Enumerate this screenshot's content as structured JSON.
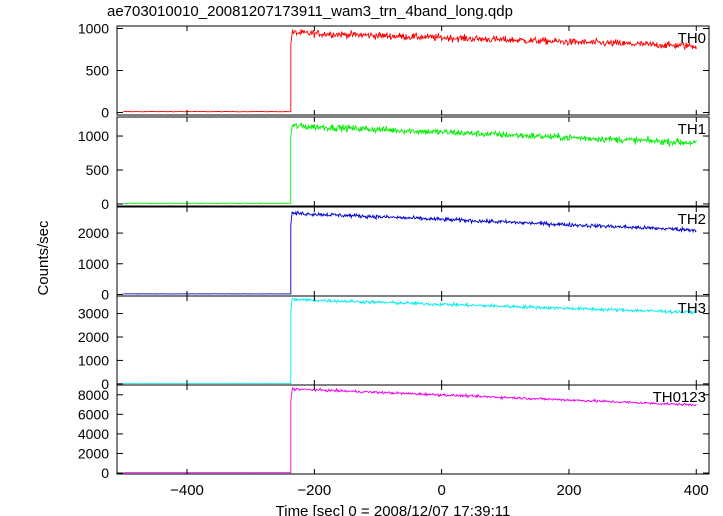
{
  "chart_data": {
    "type": "line",
    "title": "ae703010010_20081207173911_wam3_trn_4band_long.qdp",
    "xlabel": "Time [sec] 0 = 2008/12/07 17:39:11",
    "ylabel": "Counts/sec",
    "xlim": [
      -510,
      420
    ],
    "xticks": [
      -400,
      -200,
      0,
      200,
      400
    ],
    "onset_x": -237,
    "end_x": 400,
    "grid": false,
    "panels": [
      {
        "name": "TH0",
        "color": "#ff0000",
        "ylim": [
          -30,
          1030
        ],
        "yticks": [
          0,
          500,
          1000
        ],
        "pre": 10,
        "peak": 950,
        "end": 790,
        "noise": 30
      },
      {
        "name": "TH1",
        "color": "#00ee00",
        "ylim": [
          -30,
          1280
        ],
        "yticks": [
          0,
          500,
          1000
        ],
        "pre": 10,
        "peak": 1150,
        "end": 900,
        "noise": 35
      },
      {
        "name": "TH2",
        "color": "#0000cc",
        "ylim": [
          -50,
          2850
        ],
        "yticks": [
          0,
          1000,
          2000
        ],
        "pre": 20,
        "peak": 2650,
        "end": 2100,
        "noise": 45
      },
      {
        "name": "TH3",
        "color": "#00eeee",
        "ylim": [
          -50,
          3750
        ],
        "yticks": [
          0,
          1000,
          2000,
          3000
        ],
        "pre": 20,
        "peak": 3600,
        "end": 3050,
        "noise": 50
      },
      {
        "name": "TH0123",
        "color": "#ee00ee",
        "ylim": [
          -100,
          9000
        ],
        "yticks": [
          0,
          2000,
          4000,
          6000,
          8000
        ],
        "pre": 30,
        "peak": 8600,
        "end": 6950,
        "noise": 90
      }
    ]
  }
}
